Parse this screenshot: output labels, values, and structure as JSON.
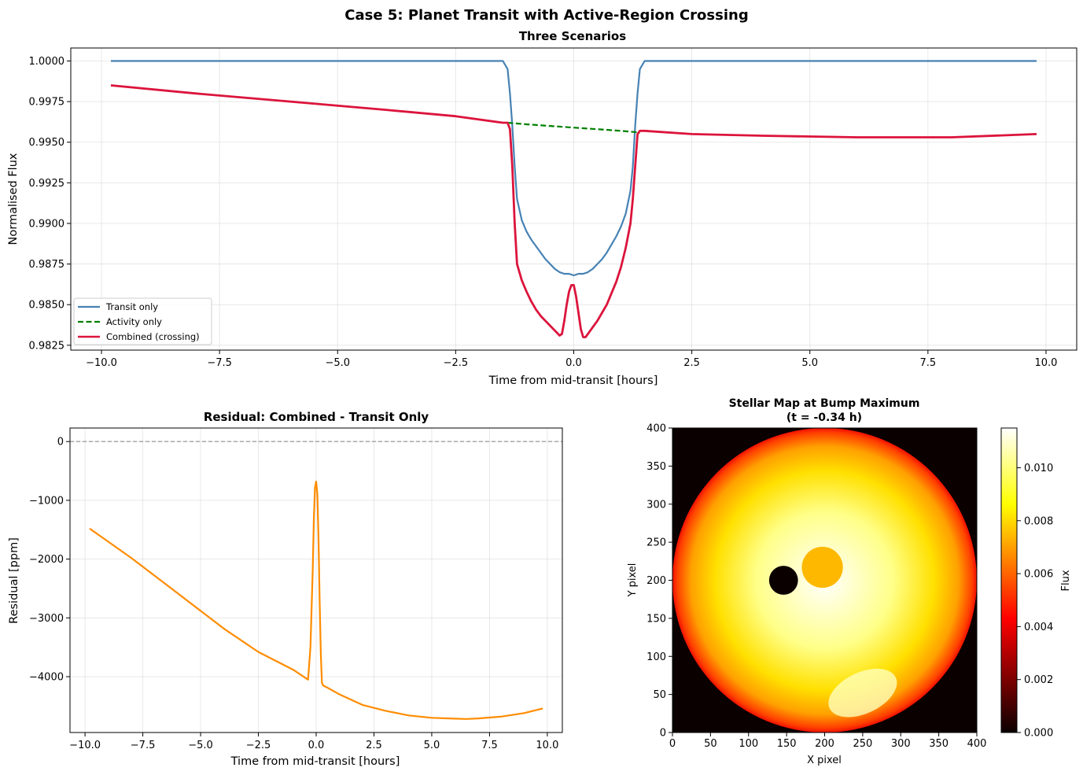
{
  "figure": {
    "suptitle": "Case 5: Planet Transit with Active-Region Crossing"
  },
  "colors": {
    "transit": "#4682b4",
    "activity": "#008000",
    "combined": "#dc143c",
    "residual": "#ff8c00",
    "zero_line": "#808080"
  },
  "chart_data": [
    {
      "id": "three_scenarios",
      "type": "line",
      "title": "Three Scenarios",
      "xlabel": "Time from mid-transit [hours]",
      "ylabel": "Normalised Flux",
      "xlim": [
        -10.65,
        10.65
      ],
      "ylim": [
        0.9822,
        1.0008
      ],
      "xticks": [
        -10.0,
        -7.5,
        -5.0,
        -2.5,
        0.0,
        2.5,
        5.0,
        7.5,
        10.0
      ],
      "xtick_labels": [
        "−10.0",
        "−7.5",
        "−5.0",
        "−2.5",
        "0.0",
        "2.5",
        "5.0",
        "7.5",
        "10.0"
      ],
      "yticks": [
        0.9825,
        0.985,
        0.9875,
        0.99,
        0.9925,
        0.995,
        0.9975,
        1.0
      ],
      "ytick_labels": [
        "0.9825",
        "0.9850",
        "0.9875",
        "0.9900",
        "0.9925",
        "0.9950",
        "0.9975",
        "1.0000"
      ],
      "grid": true,
      "legend_position": "lower-left",
      "series": [
        {
          "name": "Transit only",
          "style": "solid",
          "x": [
            -9.8,
            -1.5,
            -1.4,
            -1.35,
            -1.3,
            -1.25,
            -1.2,
            -1.1,
            -1.0,
            -0.9,
            -0.8,
            -0.7,
            -0.6,
            -0.5,
            -0.4,
            -0.3,
            -0.2,
            -0.1,
            0.0,
            0.1,
            0.2,
            0.3,
            0.4,
            0.5,
            0.6,
            0.7,
            0.8,
            0.9,
            1.0,
            1.1,
            1.2,
            1.25,
            1.3,
            1.35,
            1.4,
            1.5,
            9.8
          ],
          "y": [
            1.0,
            1.0,
            0.9995,
            0.998,
            0.996,
            0.9935,
            0.9915,
            0.9902,
            0.9895,
            0.989,
            0.9886,
            0.9882,
            0.9878,
            0.9875,
            0.9872,
            0.987,
            0.9869,
            0.9869,
            0.9868,
            0.9869,
            0.9869,
            0.987,
            0.9872,
            0.9875,
            0.9878,
            0.9882,
            0.9887,
            0.9892,
            0.9898,
            0.9906,
            0.992,
            0.9935,
            0.996,
            0.998,
            0.9995,
            1.0,
            1.0
          ]
        },
        {
          "name": "Activity only",
          "style": "dashed",
          "x": [
            -1.4,
            -1.0,
            -0.5,
            0.0,
            0.5,
            1.0,
            1.4
          ],
          "y": [
            0.9962,
            0.9961,
            0.996,
            0.9959,
            0.9958,
            0.9957,
            0.9956
          ]
        },
        {
          "name": "Combined (crossing)",
          "style": "solid",
          "x": [
            -9.8,
            -8.0,
            -6.0,
            -4.0,
            -2.5,
            -1.5,
            -1.4,
            -1.35,
            -1.3,
            -1.25,
            -1.2,
            -1.1,
            -1.0,
            -0.9,
            -0.8,
            -0.7,
            -0.6,
            -0.5,
            -0.4,
            -0.3,
            -0.25,
            -0.2,
            -0.15,
            -0.1,
            -0.05,
            0.0,
            0.05,
            0.1,
            0.15,
            0.2,
            0.25,
            0.3,
            0.4,
            0.5,
            0.6,
            0.7,
            0.8,
            0.9,
            1.0,
            1.1,
            1.2,
            1.25,
            1.3,
            1.35,
            1.4,
            1.5,
            2.5,
            4.0,
            6.0,
            8.0,
            9.8
          ],
          "y": [
            0.9985,
            0.998,
            0.9975,
            0.997,
            0.9966,
            0.9962,
            0.9962,
            0.9958,
            0.9935,
            0.99,
            0.9875,
            0.9865,
            0.9858,
            0.9852,
            0.9847,
            0.9843,
            0.984,
            0.9837,
            0.9834,
            0.9831,
            0.9832,
            0.984,
            0.985,
            0.9858,
            0.9862,
            0.9862,
            0.9855,
            0.9845,
            0.9835,
            0.983,
            0.983,
            0.9832,
            0.9836,
            0.984,
            0.9845,
            0.985,
            0.9857,
            0.9864,
            0.9873,
            0.9885,
            0.99,
            0.9915,
            0.9935,
            0.9955,
            0.9957,
            0.9957,
            0.9955,
            0.9954,
            0.9953,
            0.9953,
            0.9955
          ]
        }
      ]
    },
    {
      "id": "residual",
      "type": "line",
      "title": "Residual: Combined - Transit Only",
      "xlabel": "Time from mid-transit [hours]",
      "ylabel": "Residual [ppm]",
      "xlim": [
        -10.65,
        10.65
      ],
      "ylim": [
        -4950,
        230
      ],
      "xticks": [
        -10.0,
        -7.5,
        -5.0,
        -2.5,
        0.0,
        2.5,
        5.0,
        7.5,
        10.0
      ],
      "xtick_labels": [
        "−10.0",
        "−7.5",
        "−5.0",
        "−2.5",
        "0.0",
        "2.5",
        "5.0",
        "7.5",
        "10.0"
      ],
      "yticks": [
        0,
        -1000,
        -2000,
        -3000,
        -4000
      ],
      "ytick_labels": [
        "0",
        "−1000",
        "−2000",
        "−3000",
        "−4000"
      ],
      "grid": true,
      "reference_line_y": 0,
      "series": [
        {
          "name": "",
          "style": "solid",
          "x": [
            -9.8,
            -8.0,
            -6.0,
            -4.0,
            -2.5,
            -1.0,
            -0.35,
            -0.25,
            -0.15,
            -0.1,
            -0.05,
            0.0,
            0.05,
            0.1,
            0.15,
            0.2,
            0.25,
            0.3,
            0.35,
            0.5,
            1.0,
            2.0,
            3.0,
            4.0,
            5.0,
            6.0,
            6.5,
            7.0,
            8.0,
            9.0,
            9.8
          ],
          "y": [
            -1480,
            -1980,
            -2580,
            -3180,
            -3580,
            -3880,
            -4050,
            -3500,
            -2200,
            -1300,
            -780,
            -680,
            -900,
            -1600,
            -2700,
            -3600,
            -4100,
            -4150,
            -4160,
            -4190,
            -4300,
            -4480,
            -4580,
            -4660,
            -4700,
            -4715,
            -4720,
            -4710,
            -4680,
            -4620,
            -4540
          ]
        }
      ]
    },
    {
      "id": "stellar_map",
      "type": "heatmap",
      "title_line1": "Stellar Map at Bump Maximum",
      "title_line2": "(t = -0.34 h)",
      "xlabel": "X pixel",
      "ylabel": "Y pixel",
      "xlim": [
        0,
        400
      ],
      "ylim": [
        0,
        400
      ],
      "xticks": [
        0,
        50,
        100,
        150,
        200,
        250,
        300,
        350,
        400
      ],
      "yticks": [
        0,
        50,
        100,
        150,
        200,
        250,
        300,
        350,
        400
      ],
      "colormap": "hot",
      "colorbar_label": "Flux",
      "colorbar_range": [
        0,
        0.0115
      ],
      "colorbar_ticks": [
        0.0,
        0.002,
        0.004,
        0.006,
        0.008,
        0.01
      ],
      "colorbar_tick_labels": [
        "0.000",
        "0.002",
        "0.004",
        "0.006",
        "0.008",
        "0.010"
      ],
      "stellar_disk": {
        "center": [
          200,
          200
        ],
        "radius": 200
      },
      "planet": {
        "center": [
          146,
          200
        ],
        "radius": 19
      },
      "spot": {
        "center": [
          197,
          217
        ],
        "radius": 27
      },
      "facula": {
        "center": [
          250,
          52
        ],
        "rx": 48,
        "ry": 27,
        "angle_deg": 25
      }
    }
  ]
}
